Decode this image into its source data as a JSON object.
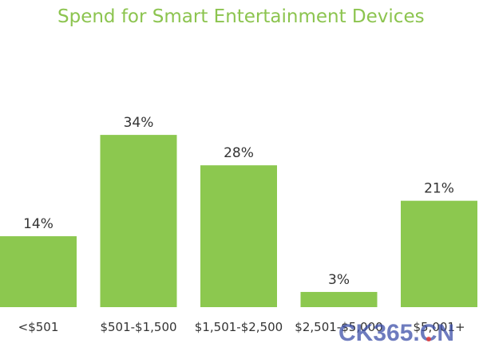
{
  "chart_data": {
    "type": "bar",
    "title": "Spend for Smart Entertainment Devices",
    "categories": [
      "<$501",
      "$501-$1,500",
      "$1,501-$2,500",
      "$2,501-$5,000",
      "$5,001+"
    ],
    "values": [
      14,
      34,
      28,
      3,
      21
    ],
    "data_labels": [
      "14%",
      "34%",
      "28%",
      "3%",
      "21%"
    ],
    "ylim": [
      0,
      40
    ],
    "grid": false,
    "legend": "none",
    "colors": {
      "bar": "#8cc84f",
      "title": "#8cc44f",
      "label": "#333333",
      "category": "#333333"
    }
  },
  "watermark": {
    "text": "CK365.CN",
    "colors": {
      "main": "#3c4fa8",
      "accent": "#e53935"
    }
  }
}
